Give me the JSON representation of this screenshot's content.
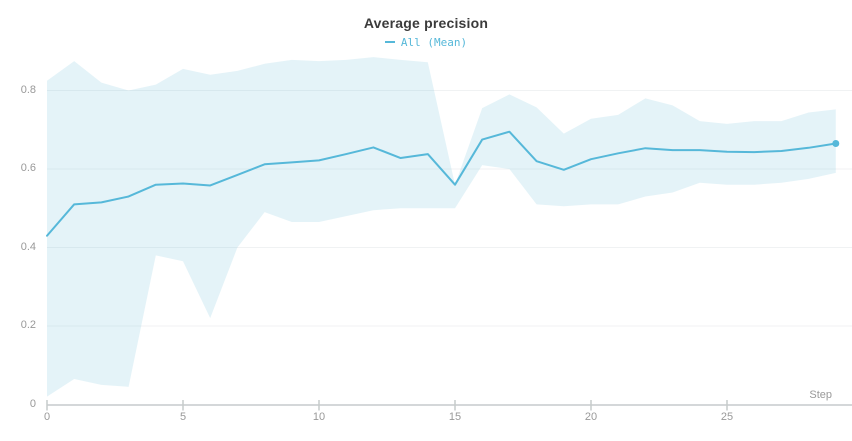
{
  "chart_data": {
    "type": "line",
    "title": "Average precision",
    "legend": [
      {
        "name": "All (Mean)",
        "color": "#56b8d9"
      }
    ],
    "legend_position": "top-center",
    "xlabel": "Step",
    "ylabel": "",
    "grid": true,
    "xlim": [
      0,
      29.6
    ],
    "ylim": [
      0,
      0.9
    ],
    "x_ticks": [
      {
        "label": "0",
        "value": 0
      },
      {
        "label": "5",
        "value": 5
      },
      {
        "label": "10",
        "value": 10
      },
      {
        "label": "15",
        "value": 15
      },
      {
        "label": "20",
        "value": 20
      },
      {
        "label": "25",
        "value": 25
      }
    ],
    "y_ticks": [
      {
        "label": "0",
        "value": 0
      },
      {
        "label": "0.2",
        "value": 0.2
      },
      {
        "label": "0.4",
        "value": 0.4
      },
      {
        "label": "0.6",
        "value": 0.6
      },
      {
        "label": "0.8",
        "value": 0.8
      }
    ],
    "x": [
      0,
      1,
      2,
      3,
      4,
      5,
      6,
      7,
      8,
      9,
      10,
      11,
      12,
      13,
      14,
      15,
      16,
      17,
      18,
      19,
      20,
      21,
      22,
      23,
      24,
      25,
      26,
      27,
      28,
      29
    ],
    "series": [
      {
        "name": "All (Mean)",
        "values": [
          0.43,
          0.51,
          0.515,
          0.53,
          0.56,
          0.563,
          0.558,
          0.585,
          0.612,
          0.617,
          0.622,
          0.638,
          0.655,
          0.628,
          0.638,
          0.56,
          0.675,
          0.695,
          0.62,
          0.598,
          0.625,
          0.64,
          0.653,
          0.648,
          0.648,
          0.644,
          0.643,
          0.646,
          0.654,
          0.665
        ],
        "band_upper": [
          0.825,
          0.875,
          0.82,
          0.8,
          0.815,
          0.855,
          0.84,
          0.85,
          0.868,
          0.878,
          0.875,
          0.878,
          0.885,
          0.878,
          0.872,
          0.56,
          0.755,
          0.79,
          0.757,
          0.69,
          0.728,
          0.738,
          0.78,
          0.762,
          0.722,
          0.715,
          0.722,
          0.722,
          0.744,
          0.752
        ],
        "band_lower": [
          0.02,
          0.065,
          0.05,
          0.045,
          0.38,
          0.365,
          0.22,
          0.4,
          0.49,
          0.465,
          0.465,
          0.48,
          0.495,
          0.5,
          0.5,
          0.5,
          0.61,
          0.6,
          0.51,
          0.505,
          0.51,
          0.51,
          0.53,
          0.54,
          0.565,
          0.56,
          0.56,
          0.565,
          0.575,
          0.59
        ],
        "end_marker": true
      }
    ],
    "colors": {
      "line": "#56b8d9",
      "band_fill": "rgba(88,183,214,0.16)",
      "title_text": "#3b3b3b",
      "axis_text": "#999999",
      "gridline": "#f0f2f3",
      "axis_line": "#d4d7d9",
      "tick": "#c6cacb"
    }
  }
}
